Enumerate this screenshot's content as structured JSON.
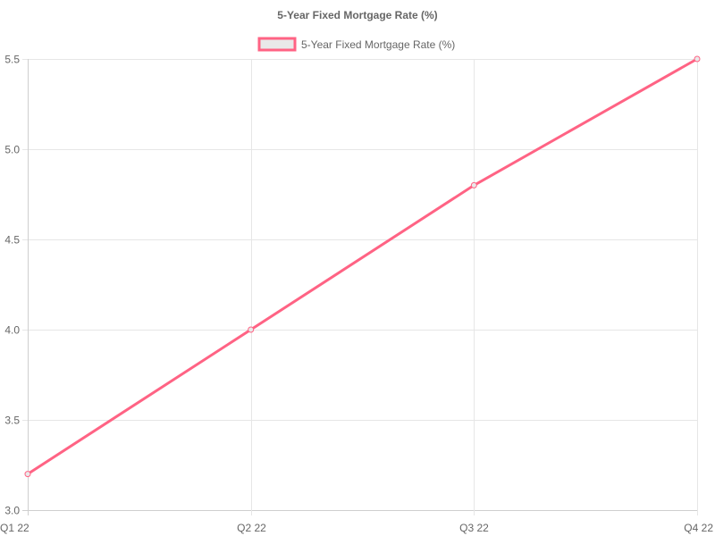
{
  "chart_data": {
    "type": "line",
    "title": "5-Year Fixed Mortgage Rate (%)",
    "xlabel": "",
    "ylabel": "",
    "categories": [
      "Q1 22",
      "Q2 22",
      "Q3 22",
      "Q4 22"
    ],
    "series": [
      {
        "name": "5-Year Fixed Mortgage Rate (%)",
        "values": [
          3.2,
          4.0,
          4.8,
          5.5
        ],
        "color": "#ff6384",
        "fill": "#e9e9e9"
      }
    ],
    "yticks": [
      "3.0",
      "3.5",
      "4.0",
      "4.5",
      "5.0",
      "5.5"
    ],
    "ylim": [
      3.0,
      5.5
    ],
    "grid": true,
    "legend_position": "top-center"
  }
}
